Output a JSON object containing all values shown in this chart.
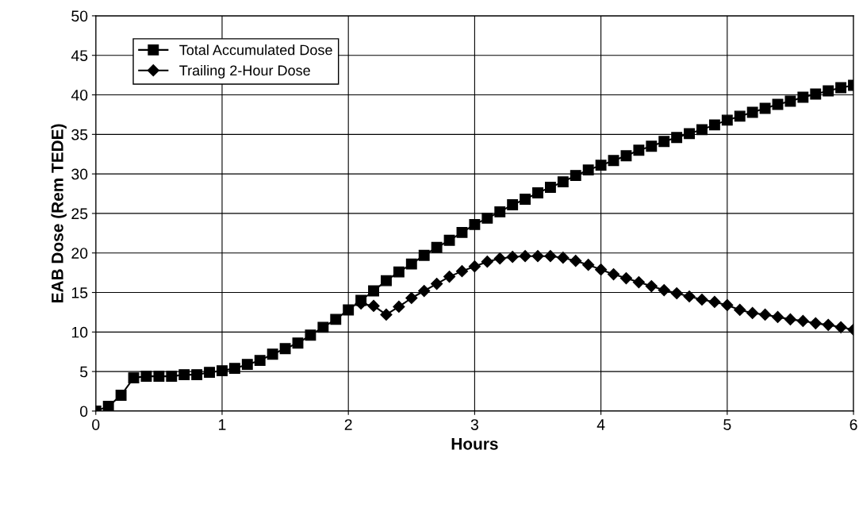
{
  "chart_data": {
    "type": "line",
    "xlabel": "Hours",
    "ylabel": "EAB Dose (Rem TEDE)",
    "x": [
      0,
      0.1,
      0.2,
      0.3,
      0.4,
      0.5,
      0.6,
      0.7,
      0.8,
      0.9,
      1.0,
      1.1,
      1.2,
      1.3,
      1.4,
      1.5,
      1.6,
      1.7,
      1.8,
      1.9,
      2.0,
      2.1,
      2.2,
      2.3,
      2.4,
      2.5,
      2.6,
      2.7,
      2.8,
      2.9,
      3.0,
      3.1,
      3.2,
      3.3,
      3.4,
      3.5,
      3.6,
      3.7,
      3.8,
      3.9,
      4.0,
      4.1,
      4.2,
      4.3,
      4.4,
      4.5,
      4.6,
      4.7,
      4.8,
      4.9,
      5.0,
      5.1,
      5.2,
      5.3,
      5.4,
      5.5,
      5.6,
      5.7,
      5.8,
      5.9,
      6.0
    ],
    "series": [
      {
        "name": "Total Accumulated Dose",
        "color": "#000000",
        "marker": "square",
        "values": [
          0,
          0.6,
          2.0,
          4.2,
          4.4,
          4.4,
          4.4,
          4.6,
          4.6,
          4.9,
          5.1,
          5.4,
          5.9,
          6.4,
          7.2,
          7.9,
          8.6,
          9.6,
          10.6,
          11.6,
          12.8,
          14.0,
          15.2,
          16.5,
          17.6,
          18.6,
          19.7,
          20.7,
          21.6,
          22.6,
          23.6,
          24.4,
          25.2,
          26.1,
          26.8,
          27.6,
          28.3,
          29.0,
          29.8,
          30.5,
          31.1,
          31.7,
          32.3,
          33.0,
          33.5,
          34.1,
          34.6,
          35.1,
          35.6,
          36.2,
          36.8,
          37.3,
          37.8,
          38.3,
          38.8,
          39.2,
          39.7,
          40.1,
          40.5,
          40.9,
          41.2
        ]
      },
      {
        "name": "Trailing 2-Hour Dose",
        "color": "#000000",
        "marker": "diamond",
        "values": [
          null,
          null,
          null,
          null,
          null,
          null,
          null,
          null,
          null,
          null,
          null,
          null,
          null,
          null,
          null,
          null,
          null,
          null,
          null,
          null,
          null,
          13.6,
          13.3,
          12.2,
          13.2,
          14.3,
          15.2,
          16.1,
          17.0,
          17.7,
          18.3,
          18.9,
          19.3,
          19.5,
          19.6,
          19.6,
          19.6,
          19.4,
          19.0,
          18.5,
          17.9,
          17.3,
          16.8,
          16.3,
          15.8,
          15.3,
          14.9,
          14.5,
          14.1,
          13.8,
          13.4,
          12.8,
          12.4,
          12.2,
          11.9,
          11.6,
          11.4,
          11.1,
          10.9,
          10.6,
          10.3
        ]
      }
    ],
    "xlim": [
      0,
      6
    ],
    "xticks": [
      0,
      1,
      2,
      3,
      4,
      5,
      6
    ],
    "ylim": [
      0,
      50
    ],
    "yticks": [
      0,
      5,
      10,
      15,
      20,
      25,
      30,
      35,
      40,
      45,
      50
    ],
    "grid": true,
    "legend": "top left",
    "line_style": "solid"
  }
}
